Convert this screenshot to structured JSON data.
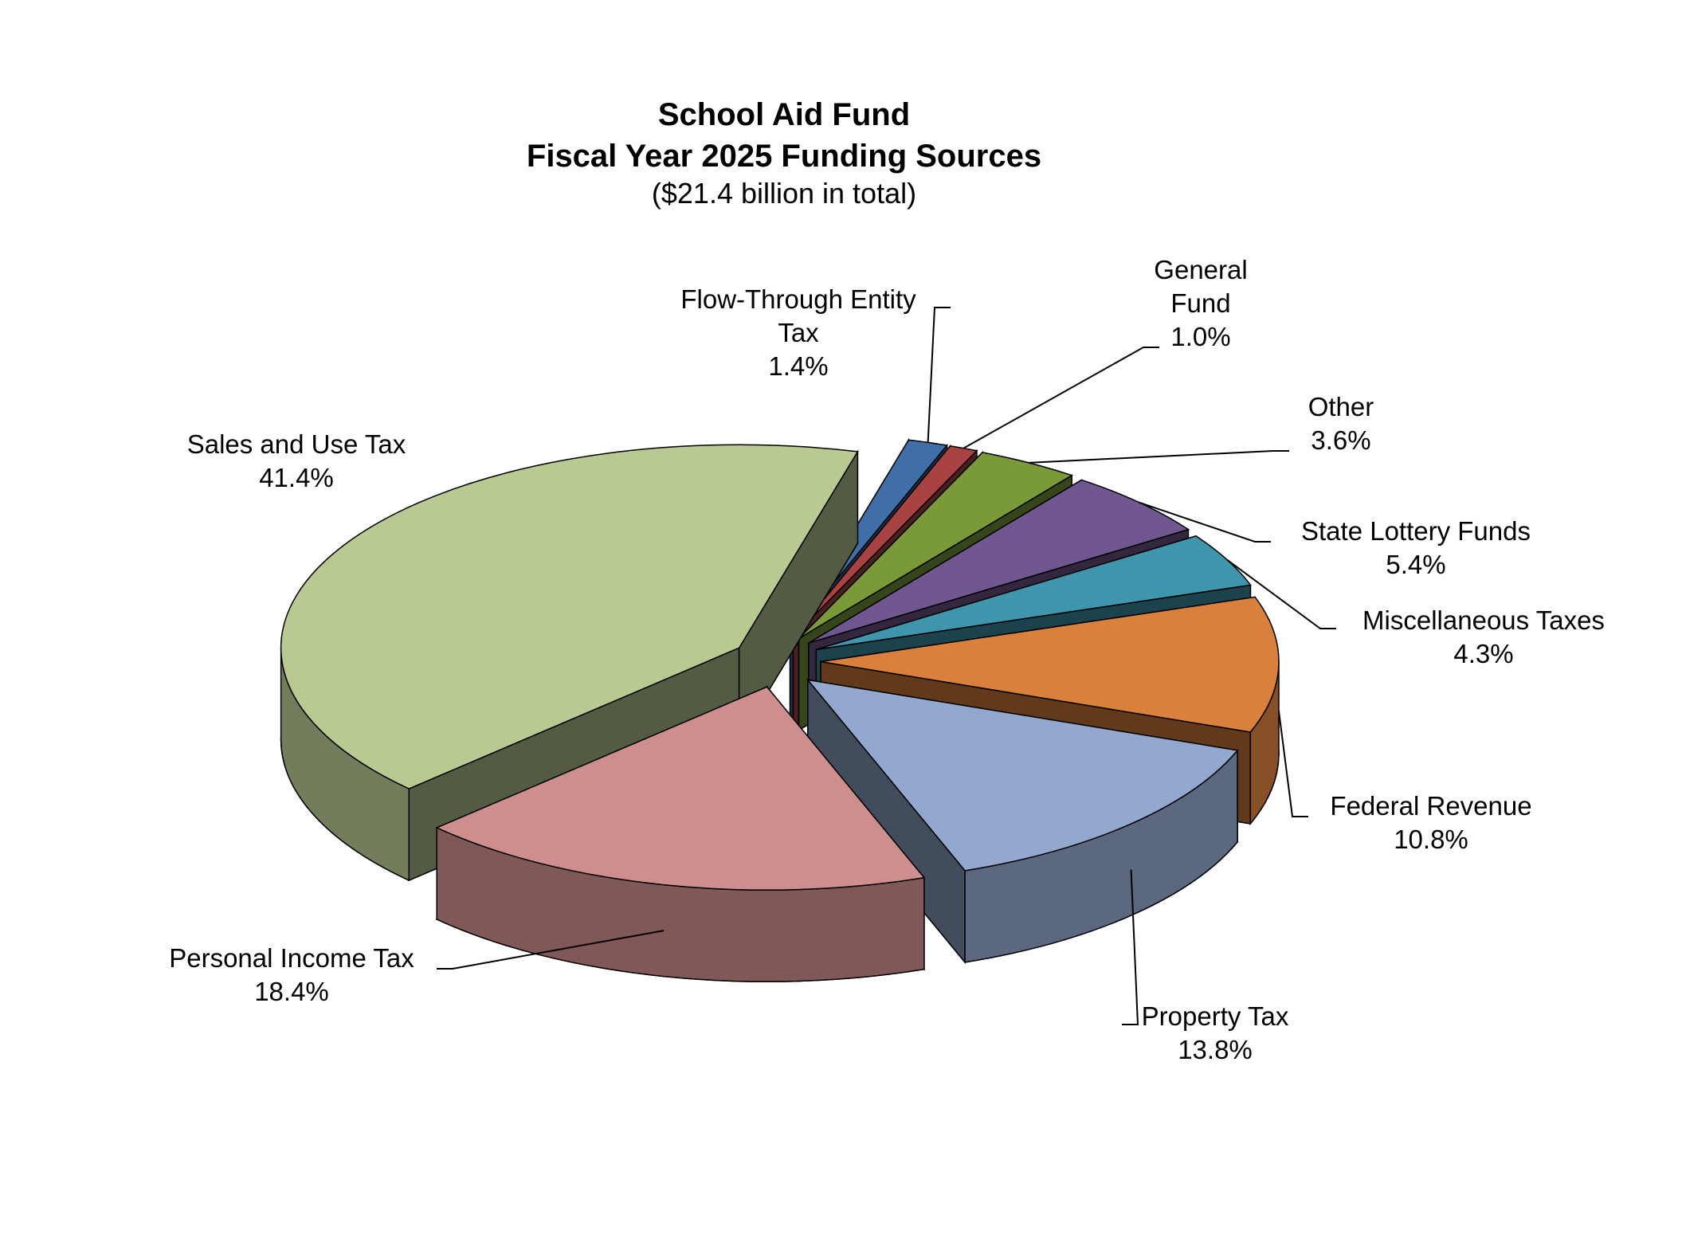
{
  "chart_data": {
    "type": "pie",
    "title": "School Aid Fund\nFiscal Year 2025 Funding Sources",
    "subtitle": "($21.4 billion in total)",
    "categories": [
      "Flow-Through Entity Tax",
      "General Fund",
      "Other",
      "State Lottery Funds",
      "Miscellaneous Taxes",
      "Federal Revenue",
      "Property Tax",
      "Personal Income Tax",
      "Sales and Use Tax"
    ],
    "values": [
      1.4,
      1.0,
      3.6,
      5.4,
      4.3,
      10.8,
      13.8,
      18.4,
      41.4
    ],
    "value_labels": [
      "1.4%",
      "1.0%",
      "3.6%",
      "5.4%",
      "4.3%",
      "10.8%",
      "13.8%",
      "18.4%",
      "41.4%"
    ],
    "colors": [
      "#3f6ea8",
      "#a94242",
      "#7a9a3a",
      "#71578f",
      "#3f95ab",
      "#d9803d",
      "#93a8cf",
      "#cf8e8e",
      "#b8ca92"
    ]
  }
}
